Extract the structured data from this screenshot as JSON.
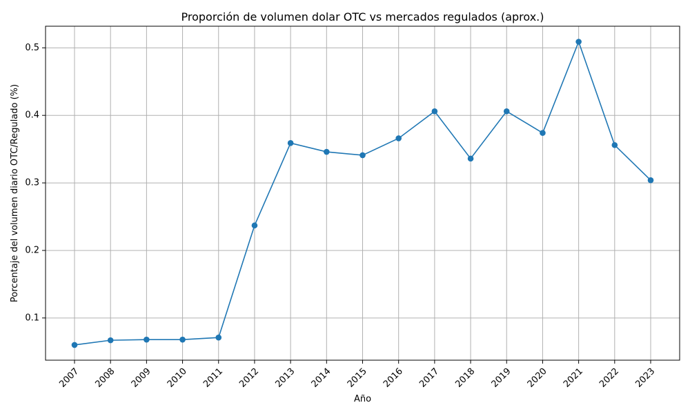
{
  "chart_data": {
    "type": "line",
    "title": "Proporción de volumen dolar OTC vs mercados regulados (aprox.)",
    "xlabel": "Año",
    "ylabel": "Porcentaje del volumen diario OTC/Regulado (%)",
    "x": [
      "2007",
      "2008",
      "2009",
      "2010",
      "2011",
      "2012",
      "2013",
      "2014",
      "2015",
      "2016",
      "2017",
      "2018",
      "2019",
      "2020",
      "2021",
      "2022",
      "2023"
    ],
    "series": [
      {
        "values": [
          0.06,
          0.067,
          0.068,
          0.068,
          0.071,
          0.237,
          0.359,
          0.346,
          0.341,
          0.366,
          0.406,
          0.336,
          0.406,
          0.374,
          0.509,
          0.356,
          0.304
        ],
        "color": "#1f77b4",
        "marker": "circle"
      }
    ],
    "yticks": [
      "0.1",
      "0.2",
      "0.3",
      "0.4",
      "0.5"
    ],
    "ylim": [
      0.0375,
      0.532
    ],
    "grid": true,
    "xtick_rotation": 45
  }
}
